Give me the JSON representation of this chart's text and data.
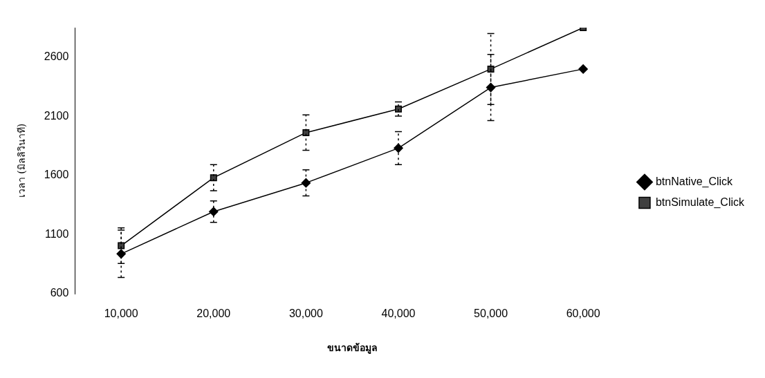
{
  "chart_data": {
    "type": "line",
    "xlabel": "ขนาดข้อมูล",
    "ylabel": "เวลา (มิลลิวินาที)",
    "categories": [
      "10,000",
      "20,000",
      "30,000",
      "40,000",
      "50,000",
      "60,000"
    ],
    "series": [
      {
        "name": "btnNative_Click",
        "color": "#000000",
        "marker": "diamond",
        "values": [
          937,
          1294,
          1537,
          1831,
          2344,
          2500
        ],
        "errors": [
          200,
          90,
          110,
          140,
          280,
          null
        ]
      },
      {
        "name": "btnSimulate_Click",
        "color": "#404040",
        "marker": "square",
        "values": [
          1006,
          1581,
          1962,
          2162,
          2500,
          2850
        ],
        "errors": [
          150,
          110,
          150,
          60,
          300,
          null
        ]
      }
    ],
    "ylim": [
      600,
      2850
    ],
    "yticks": [
      600,
      1100,
      1600,
      2100,
      2600
    ],
    "grid": false,
    "legend": "right",
    "line_style": "solid"
  }
}
